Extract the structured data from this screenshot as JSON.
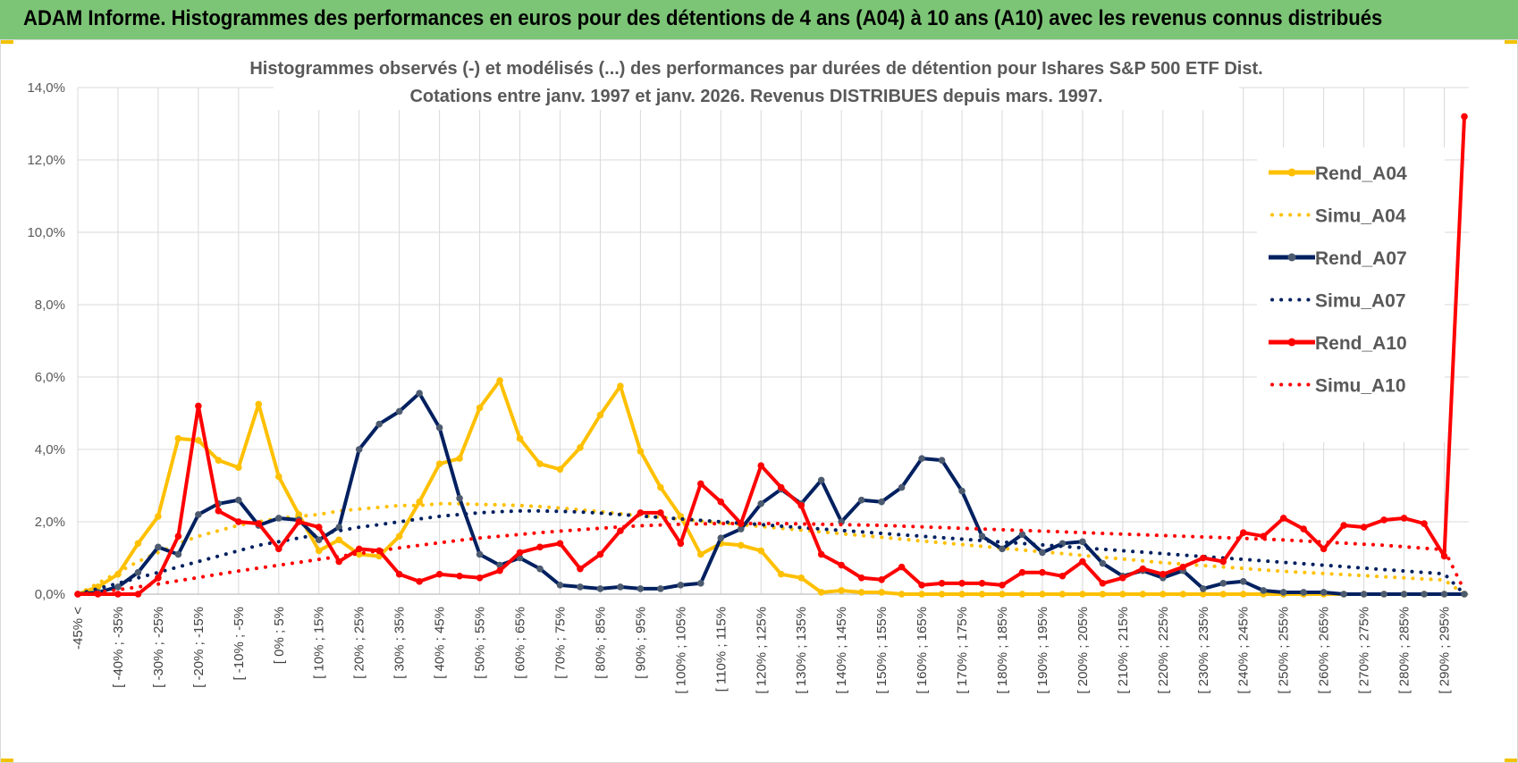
{
  "header": {
    "title": "ADAM Informe. Histogrammes des performances en euros pour des détentions de 4 ans (A04) à 10 ans (A10) avec les revenus connus distribués"
  },
  "chart_data": {
    "type": "line",
    "title": "Histogrammes observés (-) et modélisés (...) des performances par durées de détention pour Ishares S&P 500 ETF Dist.",
    "subtitle": "Cotations entre janv. 1997 et janv. 2026. Revenus DISTRIBUES depuis mars. 1997.",
    "xlabel": "",
    "ylabel": "",
    "ylim": [
      0,
      14
    ],
    "yticks": [
      "0,0%",
      "2,0%",
      "4,0%",
      "6,0%",
      "8,0%",
      "10,0%",
      "12,0%",
      "14,0%"
    ],
    "ytick_values": [
      0,
      2,
      4,
      6,
      8,
      10,
      12,
      14
    ],
    "grid": true,
    "legend_position": "right",
    "x_labels_shown": [
      "-45% <",
      "[ -40% ; -35%",
      "[ -30% ; -25%",
      "[ -20% ; -15%",
      "[ -10% ; -5%",
      "[ 0% ; 5%",
      "[ 10% ; 15%",
      "[ 20% ; 25%",
      "[ 30% ; 35%",
      "[ 40% ; 45%",
      "[ 50% ; 55%",
      "[ 60% ; 65%",
      "[ 70% ; 75%",
      "[ 80% ; 85%",
      "[ 90% ; 95%",
      "[ 100% ; 105%",
      "[ 110% ; 115%",
      "[ 120% ; 125%",
      "[ 130% ; 135%",
      "[ 140% ; 145%",
      "[ 150% ; 155%",
      "[ 160% ; 165%",
      "[ 170% ; 175%",
      "[ 180% ; 185%",
      "[ 190% ; 195%",
      "[ 200% ; 205%",
      "[ 210% ; 215%",
      "[ 220% ; 225%",
      "[ 230% ; 235%",
      "[ 240% ; 245%",
      "[ 250% ; 255%",
      "[ 260% ; 265%",
      "[ 270% ; 275%",
      "[ 280% ; 285%",
      "[ 290% ; 295%"
    ],
    "series": [
      {
        "name": "Rend_A04",
        "color": "#ffc000",
        "style": "solid",
        "values": [
          0.0,
          0.2,
          0.55,
          1.4,
          2.15,
          4.3,
          4.25,
          3.7,
          3.5,
          5.25,
          3.25,
          2.2,
          1.2,
          1.5,
          1.1,
          1.05,
          1.6,
          2.55,
          3.6,
          3.75,
          5.15,
          5.9,
          4.3,
          3.6,
          3.45,
          4.05,
          4.95,
          5.75,
          3.95,
          2.95,
          2.15,
          1.1,
          1.4,
          1.35,
          1.2,
          0.55,
          0.45,
          0.05,
          0.1,
          0.05,
          0.05,
          0.0,
          0.0,
          0.0,
          0.0,
          0.0,
          0.0,
          0.0,
          0.0,
          0.0,
          0.0,
          0.0,
          0.0,
          0.0,
          0.0,
          0.0,
          0.0,
          0.0,
          0.0,
          0.0,
          0.0,
          0.0,
          0.0,
          0.0,
          0.0,
          0.0,
          0.0,
          0.0,
          0.0,
          0.0
        ]
      },
      {
        "name": "Simu_A04",
        "color": "#ffc000",
        "style": "dotted",
        "values": [
          0.0,
          0.3,
          0.6,
          0.9,
          1.15,
          1.4,
          1.6,
          1.75,
          1.9,
          2.0,
          2.1,
          2.15,
          2.2,
          2.3,
          2.35,
          2.4,
          2.45,
          2.45,
          2.5,
          2.5,
          2.48,
          2.47,
          2.45,
          2.42,
          2.38,
          2.33,
          2.28,
          2.22,
          2.17,
          2.12,
          2.07,
          2.02,
          1.97,
          1.92,
          1.87,
          1.82,
          1.77,
          1.72,
          1.67,
          1.62,
          1.57,
          1.52,
          1.47,
          1.42,
          1.37,
          1.32,
          1.27,
          1.22,
          1.17,
          1.12,
          1.07,
          1.02,
          0.97,
          0.92,
          0.87,
          0.83,
          0.79,
          0.75,
          0.71,
          0.67,
          0.63,
          0.6,
          0.57,
          0.54,
          0.51,
          0.48,
          0.45,
          0.42,
          0.39,
          0.0
        ]
      },
      {
        "name": "Rend_A07",
        "color": "#002060",
        "style": "solid",
        "values": [
          0.0,
          0.05,
          0.2,
          0.6,
          1.3,
          1.1,
          2.2,
          2.5,
          2.6,
          1.9,
          2.1,
          2.05,
          1.5,
          1.85,
          4.0,
          4.7,
          5.05,
          5.55,
          4.6,
          2.65,
          1.1,
          0.8,
          1.0,
          0.7,
          0.25,
          0.2,
          0.15,
          0.2,
          0.15,
          0.15,
          0.25,
          0.3,
          1.55,
          1.8,
          2.5,
          2.9,
          2.5,
          3.15,
          2.0,
          2.6,
          2.55,
          2.95,
          3.75,
          3.7,
          2.85,
          1.6,
          1.25,
          1.65,
          1.15,
          1.4,
          1.45,
          0.85,
          0.5,
          0.65,
          0.45,
          0.65,
          0.15,
          0.3,
          0.35,
          0.1,
          0.05,
          0.05,
          0.05,
          0.0,
          0.0,
          0.0,
          0.0,
          0.0,
          0.0,
          0.0
        ]
      },
      {
        "name": "Simu_A07",
        "color": "#002060",
        "style": "dotted",
        "values": [
          0.0,
          0.15,
          0.3,
          0.45,
          0.6,
          0.75,
          0.9,
          1.05,
          1.2,
          1.35,
          1.45,
          1.55,
          1.65,
          1.75,
          1.85,
          1.92,
          2.0,
          2.08,
          2.15,
          2.2,
          2.25,
          2.28,
          2.3,
          2.3,
          2.29,
          2.27,
          2.24,
          2.2,
          2.16,
          2.12,
          2.08,
          2.04,
          2.0,
          1.96,
          1.92,
          1.88,
          1.84,
          1.8,
          1.76,
          1.72,
          1.68,
          1.64,
          1.6,
          1.56,
          1.52,
          1.48,
          1.44,
          1.4,
          1.36,
          1.32,
          1.28,
          1.24,
          1.2,
          1.16,
          1.12,
          1.08,
          1.04,
          1.0,
          0.96,
          0.92,
          0.88,
          0.84,
          0.8,
          0.76,
          0.72,
          0.68,
          0.64,
          0.6,
          0.56,
          0.0
        ]
      },
      {
        "name": "Rend_A10",
        "color": "#ff0000",
        "style": "solid",
        "values": [
          0.0,
          0.0,
          0.0,
          0.0,
          0.45,
          1.6,
          5.2,
          2.3,
          2.0,
          1.95,
          1.25,
          2.0,
          1.85,
          0.9,
          1.25,
          1.2,
          0.55,
          0.35,
          0.55,
          0.5,
          0.45,
          0.65,
          1.15,
          1.3,
          1.4,
          0.7,
          1.1,
          1.75,
          2.25,
          2.25,
          1.4,
          3.05,
          2.55,
          1.95,
          3.55,
          2.95,
          2.45,
          1.1,
          0.8,
          0.45,
          0.4,
          0.75,
          0.25,
          0.3,
          0.3,
          0.3,
          0.25,
          0.6,
          0.6,
          0.5,
          0.9,
          0.3,
          0.45,
          0.7,
          0.55,
          0.75,
          1.0,
          0.9,
          1.7,
          1.6,
          2.1,
          1.8,
          1.25,
          1.9,
          1.85,
          2.05,
          2.1,
          1.95,
          1.05,
          13.2
        ]
      },
      {
        "name": "Simu_A10",
        "color": "#ff0000",
        "style": "dotted",
        "values": [
          0.0,
          0.05,
          0.12,
          0.2,
          0.28,
          0.37,
          0.46,
          0.55,
          0.64,
          0.72,
          0.8,
          0.88,
          0.96,
          1.04,
          1.12,
          1.2,
          1.28,
          1.35,
          1.42,
          1.49,
          1.55,
          1.6,
          1.65,
          1.7,
          1.74,
          1.78,
          1.82,
          1.86,
          1.89,
          1.91,
          1.93,
          1.94,
          1.95,
          1.95,
          1.95,
          1.95,
          1.94,
          1.93,
          1.92,
          1.91,
          1.9,
          1.88,
          1.86,
          1.84,
          1.82,
          1.8,
          1.78,
          1.76,
          1.74,
          1.72,
          1.7,
          1.68,
          1.66,
          1.64,
          1.62,
          1.6,
          1.58,
          1.56,
          1.54,
          1.52,
          1.5,
          1.47,
          1.44,
          1.41,
          1.38,
          1.35,
          1.31,
          1.27,
          1.23,
          0.1
        ]
      }
    ]
  }
}
